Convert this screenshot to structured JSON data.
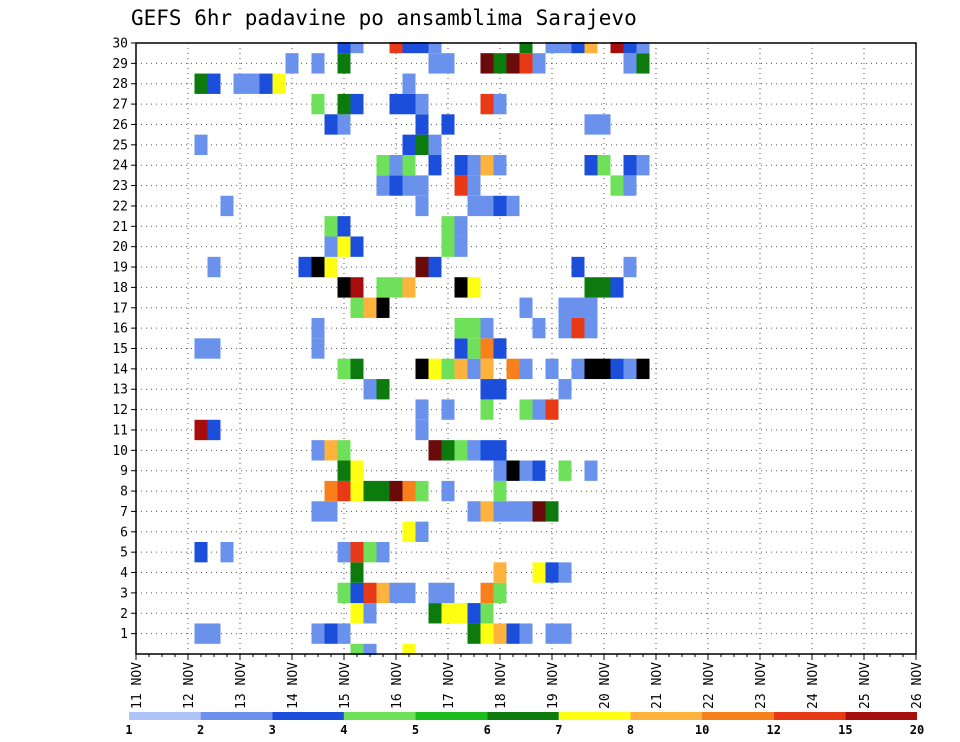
{
  "chart_data": {
    "type": "heatmap",
    "title": "GEFS 6hr padavine po ansamblima Sarajevo",
    "x_ticks": [
      "11 NOV",
      "12 NOV",
      "13 NOV",
      "14 NOV",
      "15 NOV",
      "16 NOV",
      "17 NOV",
      "18 NOV",
      "19 NOV",
      "20 NOV",
      "21 NOV",
      "22 NOV",
      "23 NOV",
      "24 NOV",
      "25 NOV",
      "26 NOV"
    ],
    "x_range": [
      0,
      60
    ],
    "y_ticks": [
      1,
      2,
      3,
      4,
      5,
      6,
      7,
      8,
      9,
      10,
      11,
      12,
      13,
      14,
      15,
      16,
      17,
      18,
      19,
      20,
      21,
      22,
      23,
      24,
      25,
      26,
      27,
      28,
      29,
      30
    ],
    "y_range": [
      0,
      30
    ],
    "grid": true,
    "legend_position": "bottom",
    "colorbar": {
      "levels": [
        "1",
        "2",
        "3",
        "4",
        "5",
        "6",
        "7",
        "8",
        "10",
        "12",
        "15",
        "20"
      ],
      "colors": [
        "#aec4f6",
        "#6a92ec",
        "#1b4edb",
        "#6ee05a",
        "#1bbc1b",
        "#0c7a0c",
        "#ffff14",
        "#ffb23c",
        "#f7801c",
        "#e83a16",
        "#a80d0d",
        "#6a0a0a"
      ]
    },
    "cells": [
      [
        17,
        0,
        3
      ],
      [
        18,
        0,
        1
      ],
      [
        21,
        0,
        6
      ],
      [
        5,
        1,
        1
      ],
      [
        6,
        1,
        1
      ],
      [
        14,
        1,
        1
      ],
      [
        15,
        1,
        2
      ],
      [
        16,
        1,
        1
      ],
      [
        26,
        1,
        5
      ],
      [
        27,
        1,
        6
      ],
      [
        28,
        1,
        7
      ],
      [
        29,
        1,
        2
      ],
      [
        30,
        1,
        1
      ],
      [
        32,
        1,
        1
      ],
      [
        33,
        1,
        1
      ],
      [
        17,
        2,
        6
      ],
      [
        18,
        2,
        1
      ],
      [
        23,
        2,
        5
      ],
      [
        24,
        2,
        6
      ],
      [
        25,
        2,
        6
      ],
      [
        26,
        2,
        2
      ],
      [
        27,
        2,
        3
      ],
      [
        16,
        3,
        3
      ],
      [
        17,
        3,
        2
      ],
      [
        18,
        3,
        9
      ],
      [
        19,
        3,
        7
      ],
      [
        20,
        3,
        1
      ],
      [
        21,
        3,
        1
      ],
      [
        23,
        3,
        1
      ],
      [
        24,
        3,
        1
      ],
      [
        27,
        3,
        8
      ],
      [
        28,
        3,
        3
      ],
      [
        17,
        4,
        5
      ],
      [
        28,
        4,
        7
      ],
      [
        31,
        4,
        6
      ],
      [
        32,
        4,
        2
      ],
      [
        33,
        4,
        1
      ],
      [
        5,
        5,
        2
      ],
      [
        7,
        5,
        1
      ],
      [
        16,
        5,
        1
      ],
      [
        17,
        5,
        9
      ],
      [
        18,
        5,
        3
      ],
      [
        19,
        5,
        1
      ],
      [
        21,
        6,
        6
      ],
      [
        22,
        6,
        1
      ],
      [
        14,
        7,
        1
      ],
      [
        15,
        7,
        1
      ],
      [
        26,
        7,
        1
      ],
      [
        27,
        7,
        7
      ],
      [
        28,
        7,
        1
      ],
      [
        29,
        7,
        1
      ],
      [
        30,
        7,
        1
      ],
      [
        31,
        7,
        11
      ],
      [
        32,
        7,
        5
      ],
      [
        15,
        8,
        8
      ],
      [
        16,
        8,
        9
      ],
      [
        17,
        8,
        6
      ],
      [
        18,
        8,
        5
      ],
      [
        19,
        8,
        5
      ],
      [
        20,
        8,
        11
      ],
      [
        21,
        8,
        8
      ],
      [
        22,
        8,
        3
      ],
      [
        24,
        8,
        1
      ],
      [
        28,
        8,
        3
      ],
      [
        16,
        9,
        5
      ],
      [
        17,
        9,
        6
      ],
      [
        28,
        9,
        1
      ],
      [
        29,
        9,
        13
      ],
      [
        30,
        9,
        1
      ],
      [
        31,
        9,
        2
      ],
      [
        33,
        9,
        3
      ],
      [
        35,
        9,
        1
      ],
      [
        14,
        10,
        1
      ],
      [
        15,
        10,
        7
      ],
      [
        16,
        10,
        3
      ],
      [
        23,
        10,
        11
      ],
      [
        24,
        10,
        5
      ],
      [
        25,
        10,
        3
      ],
      [
        26,
        10,
        1
      ],
      [
        27,
        10,
        2
      ],
      [
        28,
        10,
        2
      ],
      [
        5,
        11,
        10
      ],
      [
        6,
        11,
        2
      ],
      [
        22,
        11,
        1
      ],
      [
        22,
        12,
        1
      ],
      [
        24,
        12,
        1
      ],
      [
        27,
        12,
        3
      ],
      [
        30,
        12,
        3
      ],
      [
        31,
        12,
        1
      ],
      [
        32,
        12,
        9
      ],
      [
        18,
        13,
        1
      ],
      [
        19,
        13,
        5
      ],
      [
        27,
        13,
        2
      ],
      [
        28,
        13,
        2
      ],
      [
        33,
        13,
        1
      ],
      [
        16,
        14,
        3
      ],
      [
        17,
        14,
        5
      ],
      [
        22,
        14,
        13
      ],
      [
        23,
        14,
        6
      ],
      [
        24,
        14,
        3
      ],
      [
        25,
        14,
        7
      ],
      [
        26,
        14,
        1
      ],
      [
        27,
        14,
        7
      ],
      [
        29,
        14,
        8
      ],
      [
        30,
        14,
        1
      ],
      [
        32,
        14,
        1
      ],
      [
        34,
        14,
        1
      ],
      [
        35,
        14,
        13
      ],
      [
        36,
        14,
        13
      ],
      [
        37,
        14,
        2
      ],
      [
        38,
        14,
        1
      ],
      [
        39,
        14,
        12
      ],
      [
        5,
        15,
        1
      ],
      [
        6,
        15,
        1
      ],
      [
        14,
        15,
        1
      ],
      [
        25,
        15,
        2
      ],
      [
        26,
        15,
        3
      ],
      [
        27,
        15,
        8
      ],
      [
        28,
        15,
        2
      ],
      [
        14,
        16,
        1
      ],
      [
        25,
        16,
        3
      ],
      [
        26,
        16,
        3
      ],
      [
        27,
        16,
        1
      ],
      [
        31,
        16,
        1
      ],
      [
        33,
        16,
        1
      ],
      [
        34,
        16,
        9
      ],
      [
        35,
        16,
        1
      ],
      [
        17,
        17,
        3
      ],
      [
        18,
        17,
        7
      ],
      [
        19,
        17,
        12
      ],
      [
        30,
        17,
        1
      ],
      [
        33,
        17,
        1
      ],
      [
        34,
        17,
        1
      ],
      [
        35,
        17,
        1
      ],
      [
        16,
        18,
        12
      ],
      [
        17,
        18,
        10
      ],
      [
        19,
        18,
        3
      ],
      [
        20,
        18,
        3
      ],
      [
        21,
        18,
        7
      ],
      [
        25,
        18,
        13
      ],
      [
        26,
        18,
        6
      ],
      [
        35,
        18,
        5
      ],
      [
        36,
        18,
        5
      ],
      [
        37,
        18,
        2
      ],
      [
        6,
        19,
        1
      ],
      [
        13,
        19,
        2
      ],
      [
        14,
        19,
        13
      ],
      [
        15,
        19,
        6
      ],
      [
        22,
        19,
        11
      ],
      [
        23,
        19,
        2
      ],
      [
        34,
        19,
        2
      ],
      [
        38,
        19,
        1
      ],
      [
        15,
        20,
        1
      ],
      [
        16,
        20,
        6
      ],
      [
        17,
        20,
        2
      ],
      [
        24,
        20,
        3
      ],
      [
        25,
        20,
        1
      ],
      [
        15,
        21,
        3
      ],
      [
        16,
        21,
        2
      ],
      [
        24,
        21,
        3
      ],
      [
        25,
        21,
        1
      ],
      [
        7,
        22,
        1
      ],
      [
        22,
        22,
        1
      ],
      [
        26,
        22,
        1
      ],
      [
        27,
        22,
        1
      ],
      [
        28,
        22,
        2
      ],
      [
        29,
        22,
        1
      ],
      [
        19,
        23,
        1
      ],
      [
        20,
        23,
        2
      ],
      [
        21,
        23,
        1
      ],
      [
        22,
        23,
        1
      ],
      [
        25,
        23,
        9
      ],
      [
        26,
        23,
        1
      ],
      [
        37,
        23,
        3
      ],
      [
        38,
        23,
        1
      ],
      [
        19,
        24,
        3
      ],
      [
        20,
        24,
        1
      ],
      [
        21,
        24,
        3
      ],
      [
        23,
        24,
        2
      ],
      [
        25,
        24,
        2
      ],
      [
        26,
        24,
        1
      ],
      [
        27,
        24,
        7
      ],
      [
        28,
        24,
        1
      ],
      [
        35,
        24,
        2
      ],
      [
        36,
        24,
        3
      ],
      [
        38,
        24,
        2
      ],
      [
        39,
        24,
        1
      ],
      [
        5,
        25,
        1
      ],
      [
        21,
        25,
        2
      ],
      [
        22,
        25,
        5
      ],
      [
        23,
        25,
        1
      ],
      [
        15,
        26,
        2
      ],
      [
        16,
        26,
        1
      ],
      [
        22,
        26,
        2
      ],
      [
        24,
        26,
        2
      ],
      [
        35,
        26,
        1
      ],
      [
        36,
        26,
        1
      ],
      [
        14,
        27,
        3
      ],
      [
        16,
        27,
        5
      ],
      [
        17,
        27,
        2
      ],
      [
        20,
        27,
        2
      ],
      [
        21,
        27,
        2
      ],
      [
        22,
        27,
        1
      ],
      [
        27,
        27,
        9
      ],
      [
        28,
        27,
        1
      ],
      [
        5,
        28,
        5
      ],
      [
        6,
        28,
        2
      ],
      [
        8,
        28,
        1
      ],
      [
        9,
        28,
        1
      ],
      [
        10,
        28,
        2
      ],
      [
        11,
        28,
        6
      ],
      [
        21,
        28,
        1
      ],
      [
        12,
        29,
        1
      ],
      [
        14,
        29,
        1
      ],
      [
        16,
        29,
        5
      ],
      [
        23,
        29,
        1
      ],
      [
        24,
        29,
        1
      ],
      [
        27,
        29,
        11
      ],
      [
        28,
        29,
        5
      ],
      [
        29,
        29,
        11
      ],
      [
        30,
        29,
        9
      ],
      [
        31,
        29,
        1
      ],
      [
        38,
        29,
        1
      ],
      [
        39,
        29,
        5
      ],
      [
        16,
        30,
        2
      ],
      [
        17,
        30,
        1
      ],
      [
        20,
        30,
        9
      ],
      [
        21,
        30,
        2
      ],
      [
        22,
        30,
        2
      ],
      [
        23,
        30,
        1
      ],
      [
        30,
        30,
        5
      ],
      [
        32,
        30,
        1
      ],
      [
        33,
        30,
        1
      ],
      [
        34,
        30,
        2
      ],
      [
        35,
        30,
        7
      ],
      [
        37,
        30,
        10
      ],
      [
        38,
        30,
        2
      ],
      [
        39,
        30,
        1
      ]
    ]
  }
}
